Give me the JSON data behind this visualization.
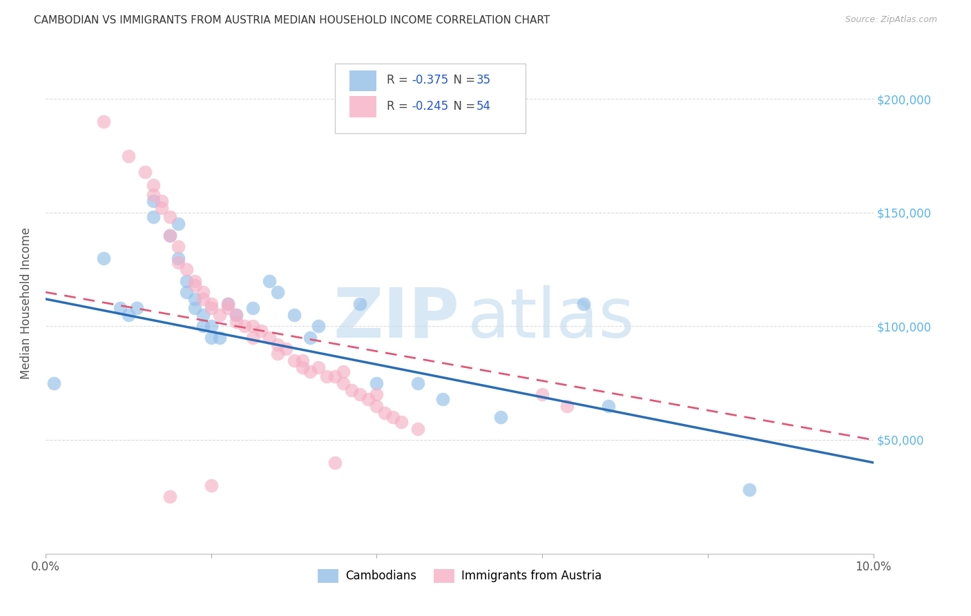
{
  "title": "CAMBODIAN VS IMMIGRANTS FROM AUSTRIA MEDIAN HOUSEHOLD INCOME CORRELATION CHART",
  "source": "Source: ZipAtlas.com",
  "ylabel": "Median Household Income",
  "legend_entries": [
    {
      "r": "-0.375",
      "n": "35",
      "color": "#a8c8ea"
    },
    {
      "r": "-0.245",
      "n": "54",
      "color": "#f5b8c8"
    }
  ],
  "legend_labels_bottom": [
    "Cambodians",
    "Immigrants from Austria"
  ],
  "yticks": [
    0,
    50000,
    100000,
    150000,
    200000
  ],
  "xlim": [
    0,
    0.1
  ],
  "ylim": [
    0,
    220000
  ],
  "blue_scatter_x": [
    0.001,
    0.007,
    0.009,
    0.01,
    0.011,
    0.013,
    0.013,
    0.015,
    0.016,
    0.016,
    0.017,
    0.017,
    0.018,
    0.018,
    0.019,
    0.019,
    0.02,
    0.02,
    0.021,
    0.022,
    0.023,
    0.025,
    0.027,
    0.028,
    0.03,
    0.032,
    0.033,
    0.038,
    0.04,
    0.045,
    0.065,
    0.068,
    0.048,
    0.055,
    0.085
  ],
  "blue_scatter_y": [
    75000,
    130000,
    108000,
    105000,
    108000,
    155000,
    148000,
    140000,
    145000,
    130000,
    120000,
    115000,
    112000,
    108000,
    105000,
    100000,
    100000,
    95000,
    95000,
    110000,
    105000,
    108000,
    120000,
    115000,
    105000,
    95000,
    100000,
    110000,
    75000,
    75000,
    110000,
    65000,
    68000,
    60000,
    28000
  ],
  "pink_scatter_x": [
    0.007,
    0.01,
    0.012,
    0.013,
    0.013,
    0.014,
    0.014,
    0.015,
    0.015,
    0.016,
    0.016,
    0.017,
    0.018,
    0.018,
    0.019,
    0.019,
    0.02,
    0.02,
    0.021,
    0.022,
    0.022,
    0.023,
    0.023,
    0.024,
    0.025,
    0.025,
    0.026,
    0.027,
    0.028,
    0.028,
    0.029,
    0.03,
    0.031,
    0.031,
    0.032,
    0.033,
    0.034,
    0.035,
    0.036,
    0.036,
    0.037,
    0.038,
    0.039,
    0.04,
    0.04,
    0.041,
    0.042,
    0.043,
    0.045,
    0.06,
    0.063,
    0.035,
    0.02,
    0.015
  ],
  "pink_scatter_y": [
    190000,
    175000,
    168000,
    162000,
    158000,
    155000,
    152000,
    148000,
    140000,
    135000,
    128000,
    125000,
    120000,
    118000,
    115000,
    112000,
    110000,
    108000,
    105000,
    110000,
    108000,
    105000,
    102000,
    100000,
    100000,
    95000,
    98000,
    95000,
    92000,
    88000,
    90000,
    85000,
    82000,
    85000,
    80000,
    82000,
    78000,
    78000,
    75000,
    80000,
    72000,
    70000,
    68000,
    70000,
    65000,
    62000,
    60000,
    58000,
    55000,
    70000,
    65000,
    40000,
    30000,
    25000
  ],
  "blue_line_x": [
    0.0,
    0.1
  ],
  "blue_line_y": [
    112000,
    40000
  ],
  "pink_line_x": [
    0.0,
    0.1
  ],
  "pink_line_y": [
    115000,
    50000
  ],
  "blue_color": "#92bfe8",
  "pink_color": "#f5afc5",
  "blue_line_color": "#2a6db5",
  "pink_line_color": "#e05878",
  "axis_color": "#555555",
  "grid_color": "#cccccc",
  "background_color": "#ffffff",
  "right_tick_color": "#5ab4e8",
  "watermark_zip_color": "#c8dff0",
  "watermark_atlas_color": "#c8dff0"
}
